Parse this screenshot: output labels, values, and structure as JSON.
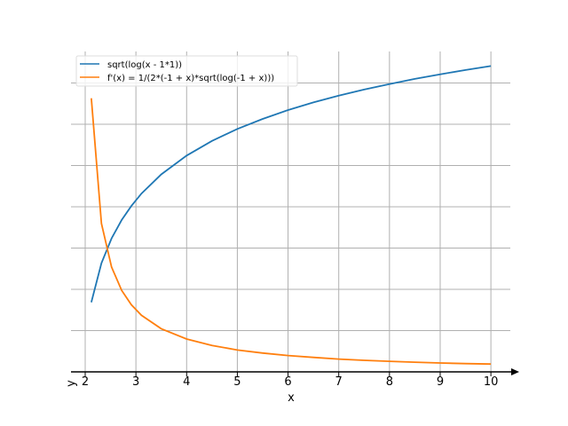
{
  "chart_data": {
    "type": "line",
    "title": "",
    "xlabel": "x",
    "ylabel": "y",
    "xlim": [
      1.72,
      10.38
    ],
    "ylim": [
      0,
      1.55
    ],
    "grid": true,
    "legend_placement": "top-left",
    "xticks": [
      2,
      3,
      4,
      5,
      6,
      7,
      8,
      9,
      10
    ],
    "xtick_labels": [
      "2",
      "3",
      "4",
      "5",
      "6",
      "7",
      "8",
      "9",
      "10"
    ],
    "ygrid": [
      0.2,
      0.4,
      0.6,
      0.8,
      1.0,
      1.2,
      1.4
    ],
    "x": [
      2.12,
      2.32,
      2.52,
      2.72,
      2.91,
      3.11,
      3.5,
      4,
      4.5,
      5,
      5.5,
      6,
      6.5,
      7,
      7.5,
      8,
      8.5,
      9,
      9.5,
      10
    ],
    "series": [
      {
        "name": "sqrt(log(x - 1*1))",
        "color": "#1f77b4",
        "values": [
          0.337,
          0.527,
          0.647,
          0.736,
          0.804,
          0.864,
          0.957,
          1.048,
          1.119,
          1.177,
          1.226,
          1.269,
          1.306,
          1.339,
          1.368,
          1.395,
          1.42,
          1.442,
          1.463,
          1.482
        ]
      },
      {
        "name": "f'(x) = 1/(2*(-1 + x)*sqrt(log(-1 + x)))",
        "color": "#ff7f0e",
        "values": [
          1.326,
          0.719,
          0.508,
          0.395,
          0.325,
          0.274,
          0.209,
          0.159,
          0.128,
          0.106,
          0.091,
          0.079,
          0.07,
          0.062,
          0.056,
          0.051,
          0.047,
          0.043,
          0.04,
          0.038
        ]
      }
    ]
  }
}
